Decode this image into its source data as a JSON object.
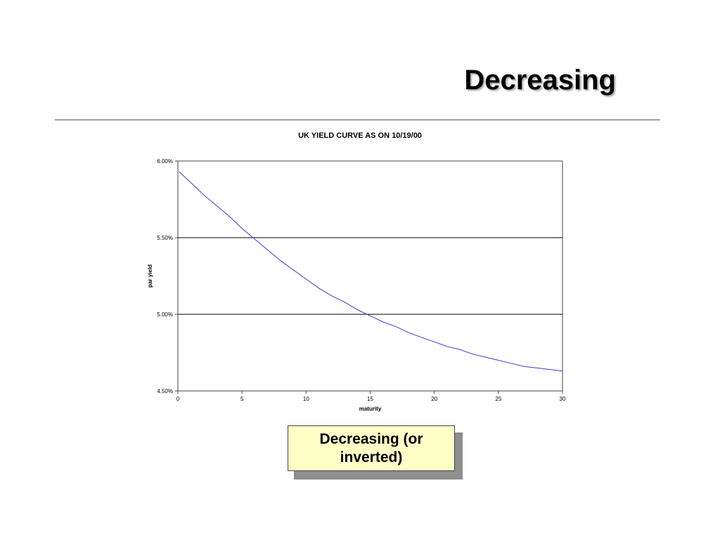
{
  "slide": {
    "title": "Decreasing",
    "callout": "Decreasing (or\ninverted)"
  },
  "colors": {
    "curve": "#3b3bd6",
    "callout_bg": "#ffffc8"
  },
  "chart_data": {
    "type": "line",
    "title": "UK  YIELD CURVE AS ON 10/19/00",
    "xlabel": "maturity",
    "ylabel": "par yield",
    "xlim": [
      0,
      30
    ],
    "ylim": [
      4.5,
      6.0
    ],
    "x_ticks": [
      "0",
      "5",
      "10",
      "15",
      "20",
      "25",
      "30"
    ],
    "y_ticks": [
      "4.50%",
      "5.00%",
      "5.50%",
      "6.00%"
    ],
    "gridlines_y": [
      5.0,
      5.5
    ],
    "legend": "none",
    "series": [
      {
        "x": [
          0.1,
          1,
          2,
          3,
          4,
          5,
          6,
          7,
          8,
          9,
          10,
          11,
          12,
          13,
          14,
          15,
          16,
          17,
          18,
          19,
          20,
          21,
          22,
          23,
          24,
          25,
          26,
          27,
          28,
          29,
          30
        ],
        "values": [
          5.93,
          5.86,
          5.78,
          5.71,
          5.64,
          5.56,
          5.49,
          5.42,
          5.35,
          5.29,
          5.23,
          5.17,
          5.12,
          5.08,
          5.03,
          4.99,
          4.95,
          4.92,
          4.88,
          4.85,
          4.82,
          4.79,
          4.77,
          4.74,
          4.72,
          4.7,
          4.68,
          4.66,
          4.65,
          4.64,
          4.63
        ]
      }
    ]
  }
}
